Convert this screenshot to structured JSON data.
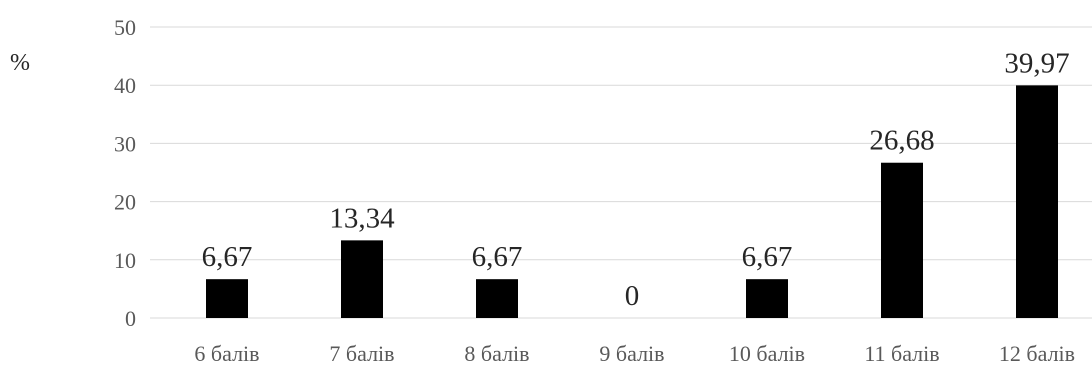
{
  "chart_data": {
    "type": "bar",
    "ylabel": "%",
    "ylim": [
      0,
      50
    ],
    "yticks": [
      0,
      10,
      20,
      30,
      40,
      50
    ],
    "grid": true,
    "categories": [
      "6 балів",
      "7 балів",
      "8 балів",
      "9 балів",
      "10 балів",
      "11 балів",
      "12 балів"
    ],
    "values": [
      6.67,
      13.34,
      6.67,
      0,
      6.67,
      26.68,
      39.97
    ],
    "data_labels": [
      "6,67",
      "13,34",
      "6,67",
      "0",
      "6,67",
      "26,68",
      "39,97"
    ],
    "bar_color": "#000000",
    "grid_color": "#d9d9d9"
  }
}
